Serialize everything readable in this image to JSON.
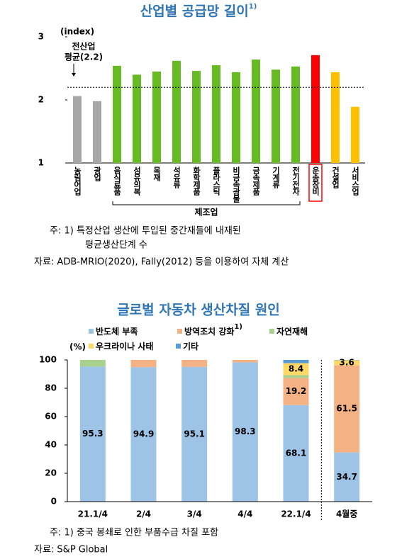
{
  "chart_data": [
    {
      "type": "bar",
      "title": "산업별 공급망 길이",
      "title_sup": "1)",
      "y_label": "(index)",
      "categories": [
        "농림어업",
        "광업",
        "음식료품",
        "섬유의복",
        "목재",
        "석유류",
        "화학제품",
        "플라스틱",
        "비금속광물",
        "금속제품",
        "기계류",
        "전기전자",
        "운송장비",
        "건설업",
        "서비스업"
      ],
      "values": [
        2.06,
        1.98,
        2.54,
        2.4,
        2.45,
        2.62,
        2.46,
        2.55,
        2.44,
        2.64,
        2.48,
        2.53,
        2.71,
        2.44,
        1.89
      ],
      "colors": [
        "#a6a6a6",
        "#a6a6a6",
        "#66bb22",
        "#66bb22",
        "#66bb22",
        "#66bb22",
        "#66bb22",
        "#66bb22",
        "#66bb22",
        "#66bb22",
        "#66bb22",
        "#66bb22",
        "#ff0000",
        "#ffc000",
        "#ffc000"
      ],
      "highlight": 12,
      "group": {
        "label": "제조업",
        "from": 2,
        "to": 11
      },
      "reference": {
        "value": 2.2,
        "label": [
          "전산업",
          "평균(2.2)"
        ]
      },
      "ylim": [
        1,
        3
      ],
      "yticks": [
        1,
        2,
        3
      ],
      "grid": false,
      "notes": [
        "주: 1) 특정산업 생산에 투입된 중간재들에 내재된",
        "평균생산단계 수",
        "자료: ADB-MRIO(2020), Fally(2012) 등을 이용하여 자체 계산"
      ]
    },
    {
      "type": "stacked_bar",
      "title": "글로벌 자동차 생산차질 원인",
      "y_label": "(%)",
      "categories": [
        "21.1/4",
        "2/4",
        "3/4",
        "4/4",
        "22.1/4",
        "4월중"
      ],
      "series": [
        {
          "name": "반도체 부족",
          "color": "#9dc3e6",
          "values": [
            95.3,
            94.9,
            95.1,
            98.3,
            68.1,
            34.7
          ],
          "value_labels": [
            "95.3",
            "94.9",
            "95.1",
            "98.3",
            "68.1",
            "34.7"
          ]
        },
        {
          "name": "방역조치 강화",
          "name_sup": "1)",
          "color": "#f4b183",
          "values": [
            null,
            5.1,
            4.9,
            1.7,
            19.2,
            61.5
          ],
          "value_labels": [
            null,
            null,
            null,
            null,
            "19.2",
            "61.5"
          ]
        },
        {
          "name": "자연재해",
          "color": "#a9d18e",
          "values": [
            4.7,
            null,
            null,
            null,
            2.0,
            null
          ],
          "value_labels": [
            null,
            null,
            null,
            null,
            null,
            null
          ]
        },
        {
          "name": "우크라이나 사태",
          "color": "#ffd966",
          "values": [
            null,
            null,
            null,
            null,
            8.4,
            3.6
          ],
          "value_labels": [
            null,
            null,
            null,
            null,
            "8.4",
            "3.6"
          ]
        },
        {
          "name": "기타",
          "color": "#5b9bd5",
          "values": [
            null,
            null,
            null,
            null,
            2.3,
            0.2
          ],
          "value_labels": [
            null,
            null,
            null,
            null,
            null,
            null
          ]
        }
      ],
      "separator_before": 5,
      "ylim": [
        0,
        100
      ],
      "yticks": [
        0,
        20,
        40,
        60,
        80,
        100
      ],
      "grid": false,
      "notes": [
        "주: 1) 중국 봉쇄로 인한 부품수급 차질 포함",
        "자료: S&P Global"
      ]
    }
  ]
}
